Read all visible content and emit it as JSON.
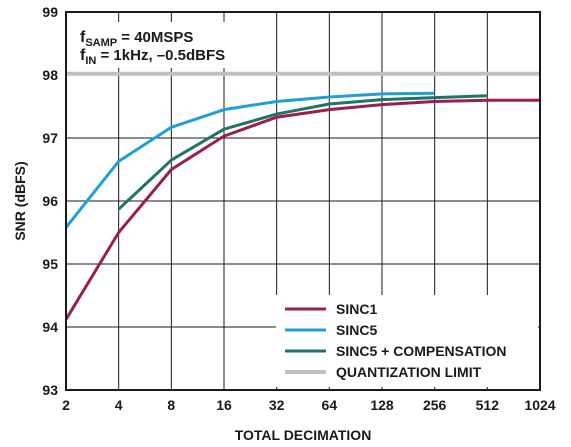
{
  "chart_data": {
    "type": "line",
    "title": "",
    "xlabel": "TOTAL DECIMATION",
    "ylabel": "SNR (dBFS)",
    "x_scale": "log2",
    "x": [
      2,
      4,
      8,
      16,
      32,
      64,
      128,
      256,
      512,
      1024
    ],
    "xticks": [
      "2",
      "4",
      "8",
      "16",
      "32",
      "64",
      "128",
      "256",
      "512",
      "1024"
    ],
    "ylim": [
      93,
      99
    ],
    "yticks": [
      "93",
      "94",
      "95",
      "96",
      "97",
      "98",
      "99"
    ],
    "grid": true,
    "legend_position": "bottom-right",
    "annotations": {
      "line1": {
        "f": "f",
        "sub": "SAMP",
        "rest": " = 40MSPS"
      },
      "line2": {
        "f": "f",
        "sub": "IN",
        "rest": " = 1kHz, –0.5dBFS"
      }
    },
    "series": [
      {
        "name": "SINC1",
        "color": "#9b1f4e",
        "x": [
          2,
          4,
          8,
          16,
          32,
          64,
          128,
          256,
          512,
          1024
        ],
        "y": [
          94.12,
          95.5,
          96.5,
          97.03,
          97.33,
          97.45,
          97.53,
          97.58,
          97.6,
          97.6
        ]
      },
      {
        "name": "SINC5",
        "color": "#1ea0d6",
        "x": [
          2,
          4,
          8,
          16,
          32,
          64,
          128,
          256
        ],
        "y": [
          95.58,
          96.63,
          97.17,
          97.45,
          97.58,
          97.65,
          97.7,
          97.71
        ]
      },
      {
        "name": "SINC5 + COMPENSATION",
        "color": "#1f7468",
        "x": [
          4,
          8,
          16,
          32,
          64,
          128,
          256,
          512
        ],
        "y": [
          95.87,
          96.65,
          97.14,
          97.38,
          97.54,
          97.61,
          97.64,
          97.67
        ]
      },
      {
        "name": "QUANTIZATION LIMIT",
        "color": "#c0c0c0",
        "x": [
          2,
          1024
        ],
        "y": [
          98.02,
          98.02
        ]
      }
    ]
  }
}
